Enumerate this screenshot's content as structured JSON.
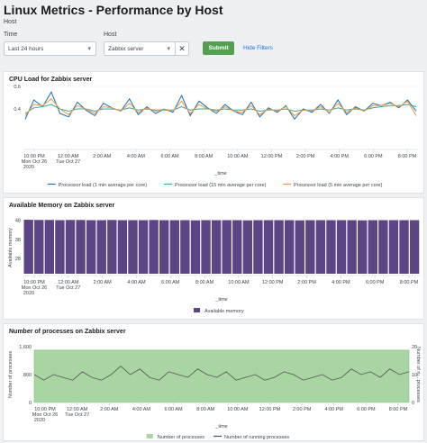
{
  "header": {
    "title": "Linux Metrics - Performance by Host",
    "subtitle": "Host",
    "time_label": "Time",
    "time_value": "Last 24 hours",
    "host_label": "Host",
    "host_value": "Zabbix server",
    "clear_icon": "close-icon",
    "submit_label": "Submit",
    "hide_filters_label": "Hide Filters"
  },
  "colors": {
    "accent_green": "#53a051",
    "link_blue": "#1a73e8",
    "memory_bar": "#5c4584",
    "processes_area": "#a8d5a2"
  },
  "x_axis": {
    "ticks": [
      "10:00 PM",
      "12:00 AM",
      "2:00 AM",
      "4:00 AM",
      "6:00 AM",
      "8:00 AM",
      "10:00 AM",
      "12:00 PM",
      "2:00 PM",
      "4:00 PM",
      "6:00 PM",
      "8:00 PM"
    ],
    "tick_sub1": [
      "Mon Oct 26",
      "Tue Oct 27"
    ],
    "tick_sub2": "2020",
    "title": "_time"
  },
  "chart_data": [
    {
      "type": "line",
      "title": "CPU Load for Zabbix server",
      "ylim": [
        0.2,
        0.6
      ],
      "yticks": [
        "0.6",
        "0.4"
      ],
      "grid": true,
      "legend_position": "bottom",
      "series": [
        {
          "name": "Processor load (1 min average per core)",
          "color": "#1f6db0",
          "values": [
            0.31,
            0.48,
            0.42,
            0.55,
            0.36,
            0.33,
            0.46,
            0.39,
            0.34,
            0.45,
            0.41,
            0.38,
            0.49,
            0.35,
            0.42,
            0.36,
            0.4,
            0.37,
            0.52,
            0.34,
            0.47,
            0.41,
            0.36,
            0.44,
            0.38,
            0.35,
            0.46,
            0.33,
            0.41,
            0.37,
            0.43,
            0.31,
            0.4,
            0.37,
            0.44,
            0.36,
            0.48,
            0.35,
            0.42,
            0.38,
            0.45,
            0.43,
            0.46,
            0.41,
            0.48,
            0.38
          ]
        },
        {
          "name": "Processor load (15 min average per core)",
          "color": "#3ea69e",
          "values": [
            0.36,
            0.41,
            0.42,
            0.44,
            0.4,
            0.38,
            0.4,
            0.4,
            0.38,
            0.4,
            0.4,
            0.39,
            0.41,
            0.39,
            0.4,
            0.39,
            0.39,
            0.39,
            0.42,
            0.39,
            0.4,
            0.4,
            0.39,
            0.4,
            0.39,
            0.39,
            0.4,
            0.38,
            0.39,
            0.39,
            0.4,
            0.38,
            0.39,
            0.39,
            0.4,
            0.39,
            0.41,
            0.39,
            0.4,
            0.39,
            0.41,
            0.42,
            0.43,
            0.43,
            0.44,
            0.42
          ]
        },
        {
          "name": "Processor load (5 min average per core)",
          "color": "#ee9a43",
          "values": [
            0.34,
            0.44,
            0.43,
            0.49,
            0.4,
            0.35,
            0.43,
            0.4,
            0.36,
            0.42,
            0.41,
            0.38,
            0.45,
            0.37,
            0.41,
            0.38,
            0.4,
            0.38,
            0.47,
            0.36,
            0.44,
            0.4,
            0.38,
            0.42,
            0.38,
            0.37,
            0.43,
            0.35,
            0.4,
            0.38,
            0.42,
            0.34,
            0.39,
            0.38,
            0.42,
            0.37,
            0.45,
            0.37,
            0.41,
            0.38,
            0.43,
            0.43,
            0.45,
            0.42,
            0.47,
            0.34
          ]
        }
      ]
    },
    {
      "type": "bar",
      "title": "Available Memory on Zabbix server",
      "ylabel": "Available memory",
      "yticks": [
        "48",
        "38",
        "28"
      ],
      "ylim": [
        20,
        52
      ],
      "legend_position": "bottom",
      "series": [
        {
          "name": "Available memory",
          "color": "#5c4584",
          "values": [
            48.2,
            48.1,
            48.1,
            48.0,
            48.1,
            48.1,
            48.0,
            48.0,
            48.1,
            48.0,
            48.0,
            48.0,
            48.1,
            48.0,
            48.0,
            48.0,
            47.9,
            48.0,
            48.0,
            48.0,
            48.0,
            47.9,
            48.0,
            48.0,
            48.0,
            48.0,
            47.9,
            48.0,
            48.0,
            48.0,
            48.0,
            48.0,
            47.9,
            48.0,
            48.0,
            48.0,
            48.0,
            48.0
          ]
        }
      ]
    },
    {
      "type": "area",
      "title": "Number of processes on Zabbix server",
      "ylabel": "Number of processes",
      "y2label": "Number of ru...processes",
      "yticks": [
        "1,600",
        "800",
        "0"
      ],
      "ylim": [
        0,
        1600
      ],
      "y2ticks": [
        "20",
        "10",
        "0"
      ],
      "y2lim": [
        0,
        20
      ],
      "legend_position": "bottom",
      "series": [
        {
          "name": "Number of processes",
          "color": "#a8d5a2",
          "axis": "left",
          "values": [
            1500,
            1500,
            1500,
            1500,
            1500,
            1500,
            1500,
            1500,
            1500,
            1500,
            1500,
            1500,
            1500,
            1500,
            1500,
            1500,
            1500,
            1500,
            1500,
            1500,
            1500,
            1500,
            1500,
            1500,
            1500,
            1500,
            1500,
            1500,
            1500,
            1500,
            1500,
            1500,
            1500,
            1500,
            1500,
            1500,
            1500,
            1500,
            1500,
            1500
          ]
        },
        {
          "name": "Number of running processes",
          "color": "#555555",
          "axis": "right",
          "values": [
            10,
            8,
            10,
            9,
            8,
            11,
            9,
            8,
            10,
            13,
            10,
            12,
            9,
            8,
            11,
            10,
            9,
            12,
            10,
            9,
            11,
            8,
            9,
            10,
            8,
            9,
            11,
            10,
            8,
            9,
            10,
            8,
            9,
            12,
            10,
            11,
            9,
            12,
            10,
            11
          ]
        }
      ]
    }
  ]
}
